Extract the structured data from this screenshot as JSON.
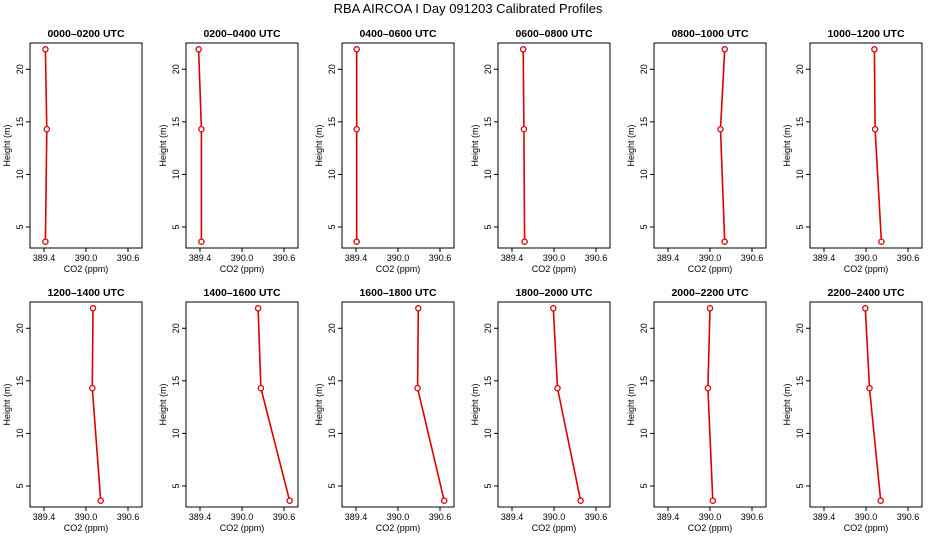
{
  "figure_title": "RBA AIRCOA I  Day 091203  Calibrated Profiles",
  "chart_data": [
    {
      "type": "line",
      "title": "0000–0200 UTC",
      "xlabel": "CO2 (ppm)",
      "ylabel": "Height (m)",
      "xlim": [
        389.2,
        390.8
      ],
      "ylim": [
        3,
        22.5
      ],
      "xticks": [
        "389.4",
        "390.0",
        "390.6"
      ],
      "yticks": [
        "5",
        "10",
        "15",
        "20"
      ],
      "series": [
        {
          "name": "profile",
          "x": [
            389.42,
            389.44,
            389.42
          ],
          "y": [
            3.6,
            14.3,
            21.9
          ]
        }
      ],
      "color": "#dd0000"
    },
    {
      "type": "line",
      "title": "0200–0400 UTC",
      "xlabel": "CO2 (ppm)",
      "ylabel": "Height (m)",
      "xlim": [
        389.2,
        390.8
      ],
      "ylim": [
        3,
        22.5
      ],
      "xticks": [
        "389.4",
        "390.0",
        "390.6"
      ],
      "yticks": [
        "5",
        "10",
        "15",
        "20"
      ],
      "series": [
        {
          "name": "profile",
          "x": [
            389.42,
            389.42,
            389.38
          ],
          "y": [
            3.6,
            14.3,
            21.9
          ]
        }
      ],
      "color": "#dd0000"
    },
    {
      "type": "line",
      "title": "0400–0600 UTC",
      "xlabel": "CO2 (ppm)",
      "ylabel": "Height (m)",
      "xlim": [
        389.2,
        390.8
      ],
      "ylim": [
        3,
        22.5
      ],
      "xticks": [
        "389.4",
        "390.0",
        "390.6"
      ],
      "yticks": [
        "5",
        "10",
        "15",
        "20"
      ],
      "series": [
        {
          "name": "profile",
          "x": [
            389.41,
            389.41,
            389.41
          ],
          "y": [
            3.6,
            14.3,
            21.9
          ]
        }
      ],
      "color": "#dd0000"
    },
    {
      "type": "line",
      "title": "0600–0800 UTC",
      "xlabel": "CO2 (ppm)",
      "ylabel": "Height (m)",
      "xlim": [
        389.2,
        390.8
      ],
      "ylim": [
        3,
        22.5
      ],
      "xticks": [
        "389.4",
        "390.0",
        "390.6"
      ],
      "yticks": [
        "5",
        "10",
        "15",
        "20"
      ],
      "series": [
        {
          "name": "profile",
          "x": [
            389.58,
            389.57,
            389.56
          ],
          "y": [
            3.6,
            14.3,
            21.9
          ]
        }
      ],
      "color": "#dd0000"
    },
    {
      "type": "line",
      "title": "0800–1000 UTC",
      "xlabel": "CO2 (ppm)",
      "ylabel": "Height (m)",
      "xlim": [
        389.2,
        390.8
      ],
      "ylim": [
        3,
        22.5
      ],
      "xticks": [
        "389.4",
        "390.0",
        "390.6"
      ],
      "yticks": [
        "5",
        "10",
        "15",
        "20"
      ],
      "series": [
        {
          "name": "profile",
          "x": [
            390.21,
            390.15,
            390.21
          ],
          "y": [
            3.6,
            14.3,
            21.9
          ]
        }
      ],
      "color": "#dd0000"
    },
    {
      "type": "line",
      "title": "1000–1200 UTC",
      "xlabel": "CO2 (ppm)",
      "ylabel": "Height (m)",
      "xlim": [
        389.2,
        390.8
      ],
      "ylim": [
        3,
        22.5
      ],
      "xticks": [
        "389.4",
        "390.0",
        "390.6"
      ],
      "yticks": [
        "5",
        "10",
        "15",
        "20"
      ],
      "series": [
        {
          "name": "profile",
          "x": [
            390.22,
            390.13,
            390.12
          ],
          "y": [
            3.6,
            14.3,
            21.9
          ]
        }
      ],
      "color": "#dd0000"
    },
    {
      "type": "line",
      "title": "1200–1400 UTC",
      "xlabel": "CO2 (ppm)",
      "ylabel": "Height (m)",
      "xlim": [
        389.2,
        390.8
      ],
      "ylim": [
        3,
        22.5
      ],
      "xticks": [
        "389.4",
        "390.0",
        "390.6"
      ],
      "yticks": [
        "5",
        "10",
        "15",
        "20"
      ],
      "series": [
        {
          "name": "profile",
          "x": [
            390.21,
            390.09,
            390.1
          ],
          "y": [
            3.6,
            14.3,
            21.9
          ]
        }
      ],
      "color": "#dd0000"
    },
    {
      "type": "line",
      "title": "1400–1600 UTC",
      "xlabel": "CO2 (ppm)",
      "ylabel": "Height (m)",
      "xlim": [
        389.2,
        390.8
      ],
      "ylim": [
        3,
        22.5
      ],
      "xticks": [
        "389.4",
        "390.0",
        "390.6"
      ],
      "yticks": [
        "5",
        "10",
        "15",
        "20"
      ],
      "series": [
        {
          "name": "profile",
          "x": [
            390.68,
            390.27,
            390.23
          ],
          "y": [
            3.6,
            14.3,
            21.9
          ]
        }
      ],
      "color": "#dd0000"
    },
    {
      "type": "line",
      "title": "1600–1800 UTC",
      "xlabel": "CO2 (ppm)",
      "ylabel": "Height (m)",
      "xlim": [
        389.2,
        390.8
      ],
      "ylim": [
        3,
        22.5
      ],
      "xticks": [
        "389.4",
        "390.0",
        "390.6"
      ],
      "yticks": [
        "5",
        "10",
        "15",
        "20"
      ],
      "series": [
        {
          "name": "profile",
          "x": [
            390.66,
            390.28,
            390.29
          ],
          "y": [
            3.6,
            14.3,
            21.9
          ]
        }
      ],
      "color": "#dd0000"
    },
    {
      "type": "line",
      "title": "1800–2000 UTC",
      "xlabel": "CO2 (ppm)",
      "ylabel": "Height (m)",
      "xlim": [
        389.2,
        390.8
      ],
      "ylim": [
        3,
        22.5
      ],
      "xticks": [
        "389.4",
        "390.0",
        "390.6"
      ],
      "yticks": [
        "5",
        "10",
        "15",
        "20"
      ],
      "series": [
        {
          "name": "profile",
          "x": [
            390.38,
            390.05,
            389.99
          ],
          "y": [
            3.6,
            14.3,
            21.9
          ]
        }
      ],
      "color": "#dd0000"
    },
    {
      "type": "line",
      "title": "2000–2200 UTC",
      "xlabel": "CO2 (ppm)",
      "ylabel": "Height (m)",
      "xlim": [
        389.2,
        390.8
      ],
      "ylim": [
        3,
        22.5
      ],
      "xticks": [
        "389.4",
        "390.0",
        "390.6"
      ],
      "yticks": [
        "5",
        "10",
        "15",
        "20"
      ],
      "series": [
        {
          "name": "profile",
          "x": [
            390.04,
            389.97,
            390.0
          ],
          "y": [
            3.6,
            14.3,
            21.9
          ]
        }
      ],
      "color": "#dd0000"
    },
    {
      "type": "line",
      "title": "2200–2400 UTC",
      "xlabel": "CO2 (ppm)",
      "ylabel": "Height (m)",
      "xlim": [
        389.2,
        390.8
      ],
      "ylim": [
        3,
        22.5
      ],
      "xticks": [
        "389.4",
        "390.0",
        "390.6"
      ],
      "yticks": [
        "5",
        "10",
        "15",
        "20"
      ],
      "series": [
        {
          "name": "profile",
          "x": [
            390.21,
            390.05,
            389.99
          ],
          "y": [
            3.6,
            14.3,
            21.9
          ]
        }
      ],
      "color": "#dd0000"
    }
  ]
}
